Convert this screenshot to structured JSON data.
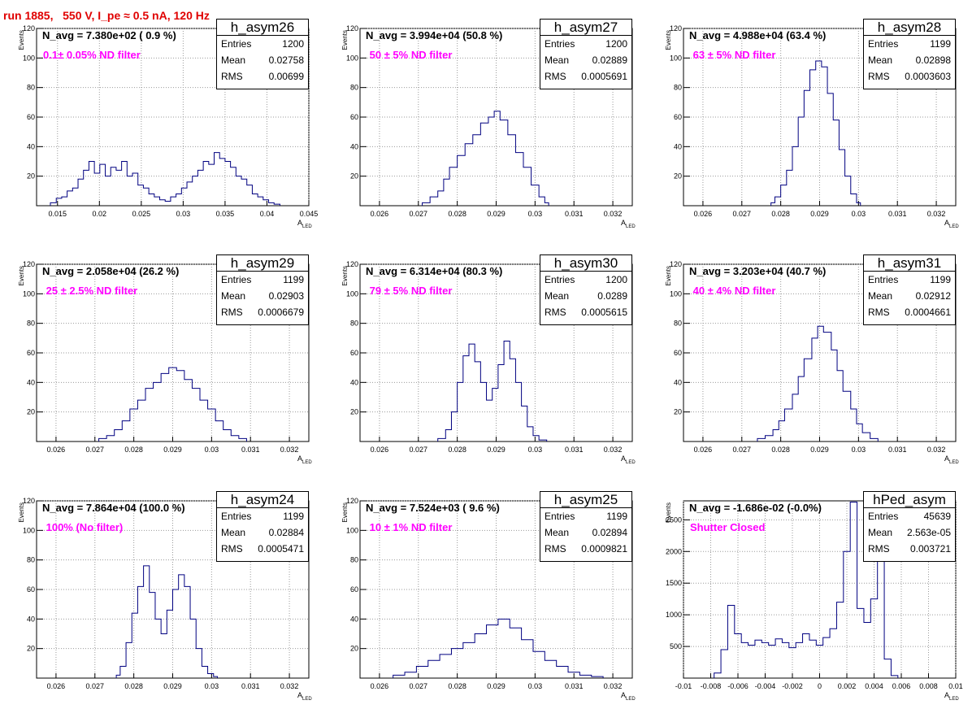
{
  "run_title": "run 1885,   550 V, I_pe ≈ 0.5 nA, 120 Hz",
  "colors": {
    "title": "#e00000",
    "line": "#000080",
    "filter": "#ff00ff",
    "grid": "#9a9a9a"
  },
  "chart_data": [
    {
      "type": "histogram",
      "name": "h_asym26",
      "navg": "N_avg = 7.380e+02 ( 0.9 %)",
      "filter": "0.1± 0.05% ND filter",
      "stats": {
        "entries_label": "Entries",
        "entries": "1200",
        "mean_label": "Mean",
        "mean": "0.02758",
        "rms_label": "RMS",
        "rms": "0.00699"
      },
      "ylabel": "Events",
      "xlabel": "A",
      "xlabel_sub": "LED",
      "xlim": [
        0.0125,
        0.045
      ],
      "ylim": [
        0,
        120
      ],
      "xticks": [
        0.015,
        0.02,
        0.025,
        0.03,
        0.035,
        0.04,
        0.045
      ],
      "xtick_labels": [
        "0.015",
        "0.02",
        "0.025",
        "0.03",
        "0.035",
        "0.04",
        "0.045"
      ],
      "yticks": [
        20,
        40,
        60,
        80,
        100,
        120
      ],
      "ytick_labels": [
        "20",
        "40",
        "60",
        "80",
        "100",
        "120"
      ],
      "bin_centers": [
        0.0145,
        0.0152,
        0.0158,
        0.0165,
        0.0171,
        0.0178,
        0.0184,
        0.0191,
        0.0197,
        0.0204,
        0.021,
        0.0217,
        0.0223,
        0.023,
        0.0236,
        0.0243,
        0.0249,
        0.0256,
        0.0262,
        0.0269,
        0.0275,
        0.0282,
        0.0288,
        0.0295,
        0.0301,
        0.0308,
        0.0314,
        0.0321,
        0.0327,
        0.0334,
        0.034,
        0.0347,
        0.0353,
        0.036,
        0.0366,
        0.0373,
        0.0379,
        0.0386,
        0.0392,
        0.0399,
        0.0405,
        0.0412
      ],
      "values": [
        2,
        5,
        6,
        10,
        12,
        18,
        24,
        30,
        22,
        28,
        20,
        26,
        24,
        30,
        20,
        22,
        14,
        12,
        8,
        6,
        4,
        3,
        6,
        8,
        12,
        16,
        20,
        24,
        30,
        28,
        36,
        32,
        30,
        26,
        20,
        18,
        14,
        8,
        6,
        4,
        2,
        1
      ]
    },
    {
      "type": "histogram",
      "name": "h_asym27",
      "navg": "N_avg = 3.994e+04 (50.8 %)",
      "filter": " 50 ± 5% ND filter",
      "stats": {
        "entries_label": "Entries",
        "entries": "1200",
        "mean_label": "Mean",
        "mean": "0.02889",
        "rms_label": "RMS",
        "rms": "0.0005691"
      },
      "ylabel": "Events",
      "xlabel": "A",
      "xlabel_sub": "LED",
      "xlim": [
        0.0255,
        0.0325
      ],
      "ylim": [
        0,
        120
      ],
      "xticks": [
        0.026,
        0.027,
        0.028,
        0.029,
        0.03,
        0.031,
        0.032
      ],
      "xtick_labels": [
        "0.026",
        "0.027",
        "0.028",
        "0.029",
        "0.03",
        "0.031",
        "0.032"
      ],
      "yticks": [
        20,
        40,
        60,
        80,
        100,
        120
      ],
      "ytick_labels": [
        "20",
        "40",
        "60",
        "80",
        "100",
        "120"
      ],
      "bin_centers": [
        0.0272,
        0.0274,
        0.0276,
        0.0277,
        0.0279,
        0.0281,
        0.0283,
        0.0285,
        0.0287,
        0.0289,
        0.029,
        0.0292,
        0.0294,
        0.0296,
        0.0298,
        0.03,
        0.0302,
        0.0303
      ],
      "values": [
        2,
        6,
        10,
        18,
        26,
        34,
        42,
        48,
        56,
        60,
        64,
        58,
        48,
        36,
        26,
        14,
        6,
        2
      ]
    },
    {
      "type": "histogram",
      "name": "h_asym28",
      "navg": "N_avg = 4.988e+04 (63.4 %)",
      "filter": " 63 ± 5% ND filter",
      "stats": {
        "entries_label": "Entries",
        "entries": "1199",
        "mean_label": "Mean",
        "mean": "0.02898",
        "rms_label": "RMS",
        "rms": "0.0003603"
      },
      "ylabel": "Events",
      "xlabel": "A",
      "xlabel_sub": "LED",
      "xlim": [
        0.0255,
        0.0325
      ],
      "ylim": [
        0,
        120
      ],
      "xticks": [
        0.026,
        0.027,
        0.028,
        0.029,
        0.03,
        0.031,
        0.032
      ],
      "xtick_labels": [
        "0.026",
        "0.027",
        "0.028",
        "0.029",
        "0.03",
        "0.031",
        "0.032"
      ],
      "yticks": [
        20,
        40,
        60,
        80,
        100,
        120
      ],
      "ytick_labels": [
        "20",
        "40",
        "60",
        "80",
        "100",
        "120"
      ],
      "bin_centers": [
        0.0278,
        0.0279,
        0.0281,
        0.0282,
        0.0284,
        0.0285,
        0.0287,
        0.0288,
        0.029,
        0.0291,
        0.0293,
        0.0294,
        0.0296,
        0.0297,
        0.0299,
        0.03
      ],
      "values": [
        2,
        6,
        14,
        24,
        40,
        60,
        78,
        92,
        98,
        94,
        76,
        58,
        38,
        20,
        8,
        2
      ]
    },
    {
      "type": "histogram",
      "name": "h_asym29",
      "navg": "N_avg = 2.058e+04 (26.2 %)",
      "filter": " 25 ± 2.5% ND filter",
      "stats": {
        "entries_label": "Entries",
        "entries": "1199",
        "mean_label": "Mean",
        "mean": "0.02903",
        "rms_label": "RMS",
        "rms": "0.0006679"
      },
      "ylabel": "Events",
      "xlabel": "A",
      "xlabel_sub": "LED",
      "xlim": [
        0.0255,
        0.0325
      ],
      "ylim": [
        0,
        120
      ],
      "xticks": [
        0.026,
        0.027,
        0.028,
        0.029,
        0.03,
        0.031,
        0.032
      ],
      "xtick_labels": [
        "0.026",
        "0.027",
        "0.028",
        "0.029",
        "0.03",
        "0.031",
        "0.032"
      ],
      "yticks": [
        20,
        40,
        60,
        80,
        100,
        120
      ],
      "ytick_labels": [
        "20",
        "40",
        "60",
        "80",
        "100",
        "120"
      ],
      "bin_centers": [
        0.0272,
        0.0274,
        0.0276,
        0.0278,
        0.028,
        0.0282,
        0.0284,
        0.0286,
        0.0288,
        0.029,
        0.0292,
        0.0294,
        0.0296,
        0.0298,
        0.03,
        0.0302,
        0.0304,
        0.0306,
        0.0308
      ],
      "values": [
        2,
        4,
        8,
        14,
        22,
        28,
        36,
        40,
        46,
        50,
        48,
        42,
        36,
        28,
        22,
        14,
        8,
        4,
        2
      ]
    },
    {
      "type": "histogram",
      "name": "h_asym30",
      "navg": "N_avg = 6.314e+04 (80.3 %)",
      "filter": " 79 ± 5% ND filter",
      "stats": {
        "entries_label": "Entries",
        "entries": "1200",
        "mean_label": "Mean",
        "mean": "0.0289",
        "rms_label": "RMS",
        "rms": "0.0005615"
      },
      "ylabel": "Events",
      "xlabel": "A",
      "xlabel_sub": "LED",
      "xlim": [
        0.0255,
        0.0325
      ],
      "ylim": [
        0,
        120
      ],
      "xticks": [
        0.026,
        0.027,
        0.028,
        0.029,
        0.03,
        0.031,
        0.032
      ],
      "xtick_labels": [
        "0.026",
        "0.027",
        "0.028",
        "0.029",
        "0.03",
        "0.031",
        "0.032"
      ],
      "yticks": [
        20,
        40,
        60,
        80,
        100,
        120
      ],
      "ytick_labels": [
        "20",
        "40",
        "60",
        "80",
        "100",
        "120"
      ],
      "bin_centers": [
        0.0276,
        0.0278,
        0.0279,
        0.0281,
        0.0282,
        0.0284,
        0.0285,
        0.0287,
        0.0288,
        0.029,
        0.0291,
        0.0293,
        0.0294,
        0.0296,
        0.0297,
        0.0299,
        0.03,
        0.0302
      ],
      "values": [
        2,
        8,
        20,
        40,
        58,
        66,
        54,
        40,
        28,
        36,
        52,
        68,
        56,
        40,
        24,
        10,
        4,
        1
      ]
    },
    {
      "type": "histogram",
      "name": "h_asym31",
      "navg": "N_avg = 3.203e+04 (40.7 %)",
      "filter": " 40 ± 4% ND filter",
      "stats": {
        "entries_label": "Entries",
        "entries": "1199",
        "mean_label": "Mean",
        "mean": "0.02912",
        "rms_label": "RMS",
        "rms": "0.0004661"
      },
      "ylabel": "Events",
      "xlabel": "A",
      "xlabel_sub": "LED",
      "xlim": [
        0.0255,
        0.0325
      ],
      "ylim": [
        0,
        120
      ],
      "xticks": [
        0.026,
        0.027,
        0.028,
        0.029,
        0.03,
        0.031,
        0.032
      ],
      "xtick_labels": [
        "0.026",
        "0.027",
        "0.028",
        "0.029",
        "0.03",
        "0.031",
        "0.032"
      ],
      "yticks": [
        20,
        40,
        60,
        80,
        100,
        120
      ],
      "ytick_labels": [
        "20",
        "40",
        "60",
        "80",
        "100",
        "120"
      ],
      "bin_centers": [
        0.0275,
        0.0277,
        0.0279,
        0.028,
        0.0282,
        0.0284,
        0.0285,
        0.0287,
        0.0289,
        0.029,
        0.0292,
        0.0294,
        0.0295,
        0.0297,
        0.0299,
        0.03,
        0.0302,
        0.0304
      ],
      "values": [
        2,
        4,
        8,
        14,
        22,
        32,
        44,
        56,
        70,
        78,
        74,
        62,
        48,
        34,
        22,
        12,
        6,
        2
      ]
    },
    {
      "type": "histogram",
      "name": "h_asym24",
      "navg": "N_avg = 7.864e+04 (100.0 %)",
      "filter": " 100% (No filter)",
      "stats": {
        "entries_label": "Entries",
        "entries": "1199",
        "mean_label": "Mean",
        "mean": "0.02884",
        "rms_label": "RMS",
        "rms": "0.0005471"
      },
      "ylabel": "Events",
      "xlabel": "A",
      "xlabel_sub": "LED",
      "xlim": [
        0.0255,
        0.0325
      ],
      "ylim": [
        0,
        120
      ],
      "xticks": [
        0.026,
        0.027,
        0.028,
        0.029,
        0.03,
        0.031,
        0.032
      ],
      "xtick_labels": [
        "0.026",
        "0.027",
        "0.028",
        "0.029",
        "0.03",
        "0.031",
        "0.032"
      ],
      "yticks": [
        20,
        40,
        60,
        80,
        100,
        120
      ],
      "ytick_labels": [
        "20",
        "40",
        "60",
        "80",
        "100",
        "120"
      ],
      "bin_centers": [
        0.0276,
        0.0277,
        0.0279,
        0.028,
        0.0282,
        0.0283,
        0.0285,
        0.0286,
        0.0288,
        0.0289,
        0.0291,
        0.0292,
        0.0294,
        0.0295,
        0.0297,
        0.0298,
        0.03,
        0.0301
      ],
      "values": [
        2,
        8,
        24,
        44,
        62,
        76,
        58,
        40,
        30,
        46,
        60,
        70,
        62,
        40,
        20,
        8,
        3,
        1
      ]
    },
    {
      "type": "histogram",
      "name": "h_asym25",
      "navg": "N_avg = 7.524e+03 ( 9.6 %)",
      "filter": " 10 ± 1% ND filter",
      "stats": {
        "entries_label": "Entries",
        "entries": "1199",
        "mean_label": "Mean",
        "mean": "0.02894",
        "rms_label": "RMS",
        "rms": "0.0009821"
      },
      "ylabel": "Events",
      "xlabel": "A",
      "xlabel_sub": "LED",
      "xlim": [
        0.0255,
        0.0325
      ],
      "ylim": [
        0,
        120
      ],
      "xticks": [
        0.026,
        0.027,
        0.028,
        0.029,
        0.03,
        0.031,
        0.032
      ],
      "xtick_labels": [
        "0.026",
        "0.027",
        "0.028",
        "0.029",
        "0.03",
        "0.031",
        "0.032"
      ],
      "yticks": [
        20,
        40,
        60,
        80,
        100,
        120
      ],
      "ytick_labels": [
        "20",
        "40",
        "60",
        "80",
        "100",
        "120"
      ],
      "bin_centers": [
        0.0265,
        0.0268,
        0.0271,
        0.0274,
        0.0277,
        0.028,
        0.0283,
        0.0286,
        0.0289,
        0.0292,
        0.0295,
        0.0298,
        0.0301,
        0.0304,
        0.0307,
        0.031,
        0.0313,
        0.0316
      ],
      "values": [
        2,
        4,
        8,
        12,
        16,
        20,
        24,
        30,
        36,
        40,
        34,
        26,
        18,
        12,
        8,
        4,
        2,
        1
      ]
    },
    {
      "type": "histogram",
      "name": "hPed_asym",
      "navg": "N_avg = -1.686e-02 (-0.0%)",
      "filter": "Shutter Closed",
      "stats": {
        "entries_label": "Entries",
        "entries": "45639",
        "mean_label": "Mean",
        "mean": "2.563e-05",
        "rms_label": "RMS",
        "rms": "0.003721"
      },
      "ylabel": "Events",
      "xlabel": "A",
      "xlabel_sub": "LED",
      "xlim": [
        -0.01,
        0.01
      ],
      "ylim": [
        0,
        2800
      ],
      "xticks": [
        -0.01,
        -0.008,
        -0.006,
        -0.004,
        -0.002,
        0,
        0.002,
        0.004,
        0.006,
        0.008,
        0.01
      ],
      "xtick_labels": [
        "-0.01",
        "-0.008",
        "-0.006",
        "-0.004",
        "-0.002",
        "0",
        "0.002",
        "0.004",
        "0.006",
        "0.008",
        "0.01"
      ],
      "yticks": [
        500,
        1000,
        1500,
        2000,
        2500
      ],
      "ytick_labels": [
        "500",
        "1000",
        "1500",
        "2000",
        "2500"
      ],
      "bin_centers": [
        -0.0075,
        -0.007,
        -0.0065,
        -0.006,
        -0.0055,
        -0.005,
        -0.0045,
        -0.004,
        -0.0035,
        -0.003,
        -0.0025,
        -0.002,
        -0.0015,
        -0.001,
        -0.0005,
        0,
        0.0005,
        0.001,
        0.0015,
        0.002,
        0.0025,
        0.003,
        0.0035,
        0.004,
        0.0045,
        0.005,
        0.0055
      ],
      "values": [
        80,
        450,
        1150,
        700,
        560,
        520,
        600,
        560,
        520,
        620,
        560,
        480,
        560,
        700,
        600,
        520,
        640,
        780,
        1200,
        2000,
        2780,
        1100,
        880,
        1250,
        2300,
        300,
        40
      ]
    }
  ]
}
